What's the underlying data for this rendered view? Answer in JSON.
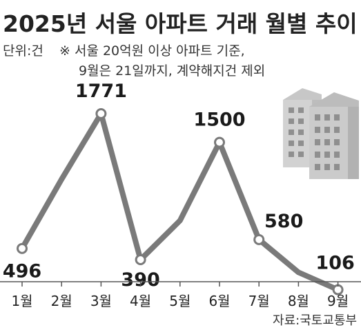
{
  "header": {
    "title": "2025년 서울 아파트 거래 월별 추이",
    "unit": "단위:건",
    "note_line1": "※ 서울 20억원 이상 아파트 기준,",
    "note_line2": "9월은 21일까지, 계약해지건 제외"
  },
  "source": "자료:국토교통부",
  "colors": {
    "line": "#7a7a7a",
    "marker_fill": "#ffffff",
    "marker_stroke": "#7a7a7a",
    "axis": "#555555",
    "building_light": "#d2d2d2",
    "building_dark": "#b8b8b8",
    "window": "#8f8f8f"
  },
  "icon": "apartment-buildings-icon",
  "chart_data": {
    "type": "line",
    "title": "2025년 서울 아파트 거래 월별 추이",
    "xlabel": "",
    "ylabel": "",
    "unit": "단위:건",
    "categories": [
      "1월",
      "2월",
      "3월",
      "4월",
      "5월",
      "6월",
      "7월",
      "8월",
      "9월"
    ],
    "series": [
      {
        "values": [
          496,
          1150,
          1771,
          390,
          760,
          1500,
          580,
          270,
          106
        ],
        "value_labels": [
          "496",
          "",
          "1771",
          "390",
          "",
          "1500",
          "580",
          "",
          "106"
        ],
        "marked": [
          true,
          false,
          true,
          true,
          false,
          true,
          true,
          false,
          true
        ]
      }
    ],
    "ylim": [
      0,
      1900
    ],
    "grid": false,
    "legend": "none"
  }
}
